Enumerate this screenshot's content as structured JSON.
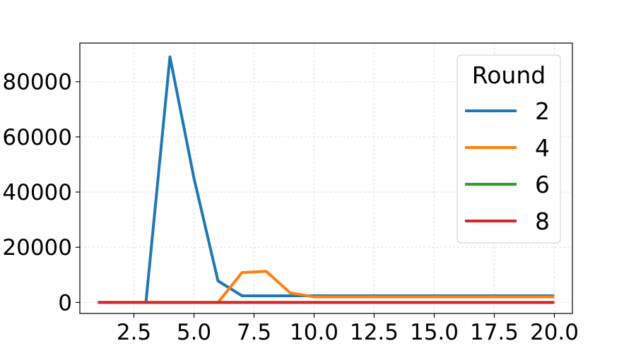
{
  "chart_data": {
    "type": "line",
    "title": "",
    "xlabel": "",
    "ylabel": "",
    "xlim": [
      0.25,
      20.75
    ],
    "ylim": [
      -4000,
      94000
    ],
    "x_ticks": [
      2.5,
      5.0,
      7.5,
      10.0,
      12.5,
      15.0,
      17.5,
      20.0
    ],
    "x_tick_labels": [
      "2.5",
      "5.0",
      "7.5",
      "10.0",
      "12.5",
      "15.0",
      "17.5",
      "20.0"
    ],
    "y_ticks": [
      0,
      20000,
      40000,
      60000,
      80000
    ],
    "y_tick_labels": [
      "0",
      "20000",
      "40000",
      "60000",
      "80000"
    ],
    "grid": true,
    "legend": {
      "title": "Round",
      "placement": "top-right"
    },
    "x": [
      1,
      2,
      3,
      4,
      5,
      6,
      7,
      8,
      9,
      10,
      11,
      12,
      13,
      14,
      15,
      16,
      17,
      18,
      19,
      20
    ],
    "series": [
      {
        "name": "2",
        "color": "#1f77b4",
        "values": [
          0,
          0,
          0,
          89000,
          45000,
          7800,
          2400,
          2400,
          2400,
          2400,
          2400,
          2400,
          2400,
          2400,
          2400,
          2400,
          2400,
          2400,
          2400,
          2400
        ]
      },
      {
        "name": "4",
        "color": "#ff7f0e",
        "values": [
          0,
          0,
          0,
          0,
          0,
          0,
          10800,
          11300,
          3500,
          2000,
          2000,
          2000,
          2000,
          2000,
          2000,
          2000,
          2000,
          2000,
          2000,
          2000
        ]
      },
      {
        "name": "6",
        "color": "#2ca02c",
        "values": [
          0,
          0,
          0,
          0,
          0,
          0,
          0,
          0,
          0,
          0,
          0,
          0,
          0,
          0,
          0,
          0,
          0,
          0,
          0,
          0
        ]
      },
      {
        "name": "8",
        "color": "#d62728",
        "values": [
          0,
          0,
          0,
          0,
          0,
          0,
          0,
          0,
          0,
          0,
          0,
          0,
          0,
          0,
          0,
          0,
          0,
          0,
          0,
          0
        ]
      }
    ]
  }
}
